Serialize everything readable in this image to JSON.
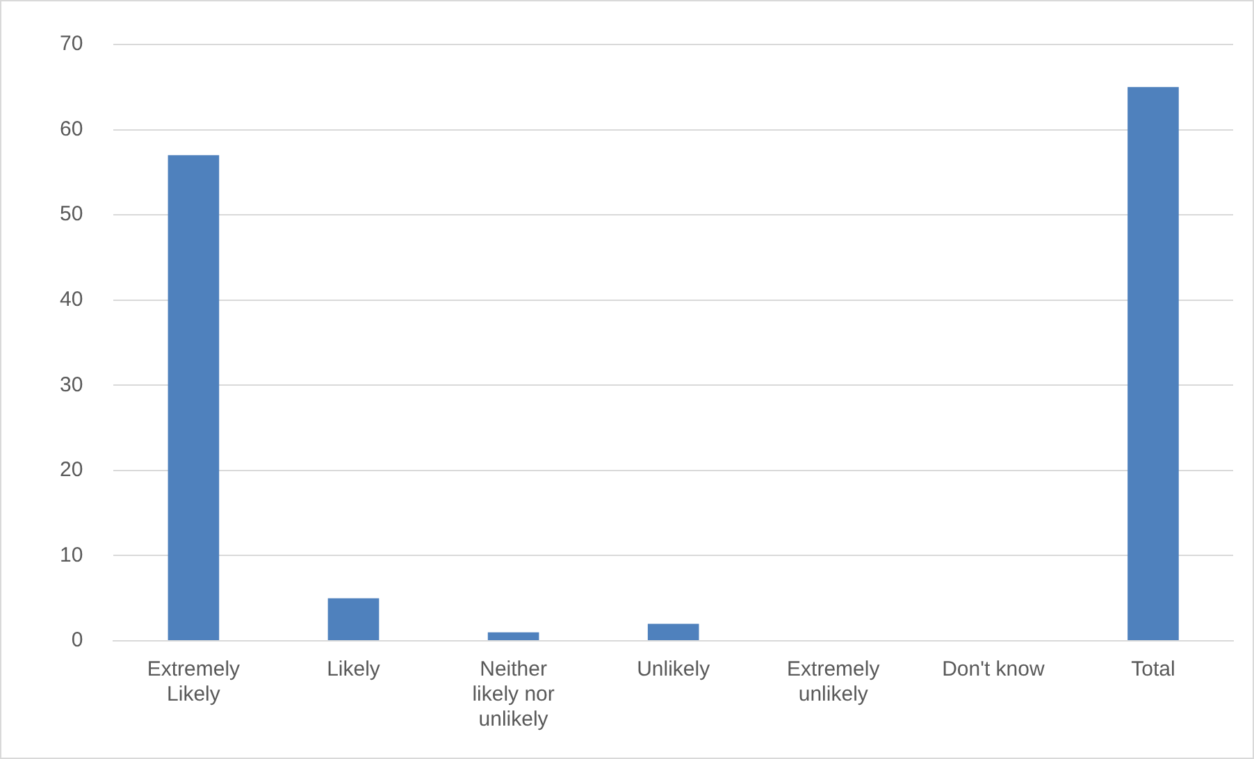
{
  "chart_data": {
    "type": "bar",
    "categories": [
      "Extremely Likely",
      "Likely",
      "Neither likely nor unlikely",
      "Unlikely",
      "Extremely unlikely",
      "Don't know",
      "Total"
    ],
    "values": [
      57,
      5,
      1,
      2,
      0,
      0,
      65
    ],
    "color": "#4f81bd",
    "ylim": [
      0,
      70
    ],
    "yticks": [
      0,
      10,
      20,
      30,
      40,
      50,
      60,
      70
    ],
    "grid": "y",
    "legend": false
  }
}
